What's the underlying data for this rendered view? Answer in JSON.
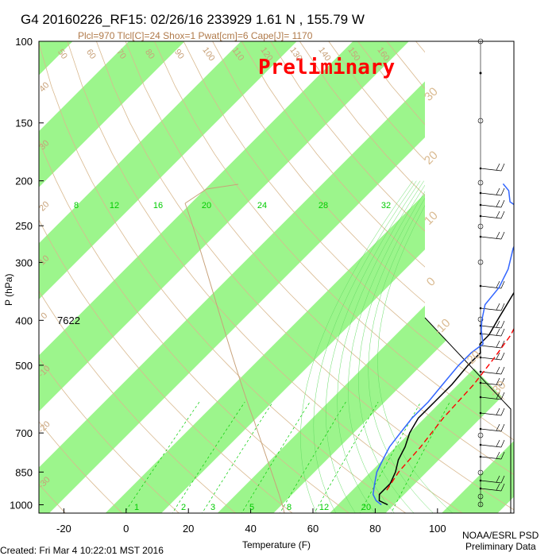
{
  "header": {
    "title": "G4 20160226_RF15: 02/26/16 233929   1.61 N , 155.79 W",
    "subtitle": "Plcl=970 Tlcl[C]=24 Shox=1 Pwat[cm]=6 Cape[J]= 1170",
    "watermark": "Preliminary"
  },
  "footer": {
    "created": "Created: Fri Mar  4 10:22:01 MST 2016",
    "org_line1": "NOAA/ESRL PSD",
    "org_line2": "Preliminary Data"
  },
  "chart_data": {
    "type": "line",
    "title": "G4 20160226_RF15: 02/26/16 233929   1.61 N , 155.79 W",
    "xlabel": "Temperature (F)",
    "ylabel": "P (hPa)",
    "xlim": [
      -30,
      120
    ],
    "ylim": [
      1050,
      100
    ],
    "y_scale": "log",
    "x_ticks": [
      -20,
      0,
      20,
      40,
      60,
      80,
      100
    ],
    "y_ticks": [
      100,
      150,
      200,
      250,
      300,
      400,
      500,
      700,
      850,
      1000
    ],
    "height_label": "7622",
    "mixing_ratio_labels": [
      "8",
      "12",
      "16",
      "20",
      "24",
      "28",
      "32"
    ],
    "mixing_ratio_bottom_labels": [
      "1",
      "2",
      "3",
      "5",
      "8",
      "12",
      "20"
    ],
    "dry_adiabat_labels": [
      "50",
      "60",
      "70",
      "80",
      "90",
      "100",
      "110",
      "120",
      "130",
      "140",
      "150",
      "160"
    ],
    "isotherm_labels": [
      "30",
      "20",
      "10",
      "0",
      "-10",
      "-20",
      "-30"
    ],
    "left_edge_labels": [
      "40",
      "30",
      "20",
      "10",
      "0",
      "-10",
      "-20",
      "-30"
    ],
    "series": [
      {
        "name": "",
        "color": "#000000",
        "points": [
          [
            84,
            1000
          ],
          [
            80,
            980
          ],
          [
            78,
            950
          ],
          [
            78,
            900
          ],
          [
            76,
            850
          ],
          [
            73,
            800
          ],
          [
            71,
            750
          ],
          [
            68,
            700
          ],
          [
            66,
            650
          ],
          [
            66,
            600
          ],
          [
            66,
            550
          ],
          [
            65,
            500
          ],
          [
            65,
            470
          ],
          [
            62,
            450
          ],
          [
            62,
            430
          ],
          [
            60,
            400
          ],
          [
            58,
            370
          ],
          [
            55,
            330
          ],
          [
            52,
            300
          ],
          [
            48,
            270
          ],
          [
            45,
            250
          ],
          [
            41,
            225
          ],
          [
            38,
            205
          ],
          [
            36,
            190
          ],
          [
            34,
            180
          ]
        ]
      },
      {
        "name": "",
        "color": "#3366ff",
        "points": [
          [
            82,
            1000
          ],
          [
            79,
            980
          ],
          [
            76,
            950
          ],
          [
            73,
            900
          ],
          [
            70,
            850
          ],
          [
            68,
            800
          ],
          [
            66,
            750
          ],
          [
            65,
            700
          ],
          [
            64,
            650
          ],
          [
            64,
            600
          ],
          [
            63,
            550
          ],
          [
            62,
            500
          ],
          [
            62,
            470
          ],
          [
            63,
            450
          ],
          [
            58,
            420
          ],
          [
            55,
            400
          ],
          [
            51,
            370
          ],
          [
            50,
            340
          ],
          [
            47,
            310
          ],
          [
            42,
            280
          ],
          [
            38,
            250
          ],
          [
            33,
            232
          ],
          [
            26,
            222
          ],
          [
            22,
            210
          ],
          [
            18,
            203
          ]
        ]
      },
      {
        "name": "",
        "color": "#ff0000",
        "points": [
          [
            79,
            930
          ],
          [
            77,
            850
          ],
          [
            76,
            750
          ],
          [
            74,
            650
          ],
          [
            73,
            550
          ],
          [
            71,
            480
          ],
          [
            69,
            430
          ],
          [
            65,
            380
          ],
          [
            61,
            330
          ],
          [
            56,
            290
          ],
          [
            50,
            250
          ],
          [
            44,
            215
          ],
          [
            38,
            190
          ]
        ]
      }
    ]
  }
}
